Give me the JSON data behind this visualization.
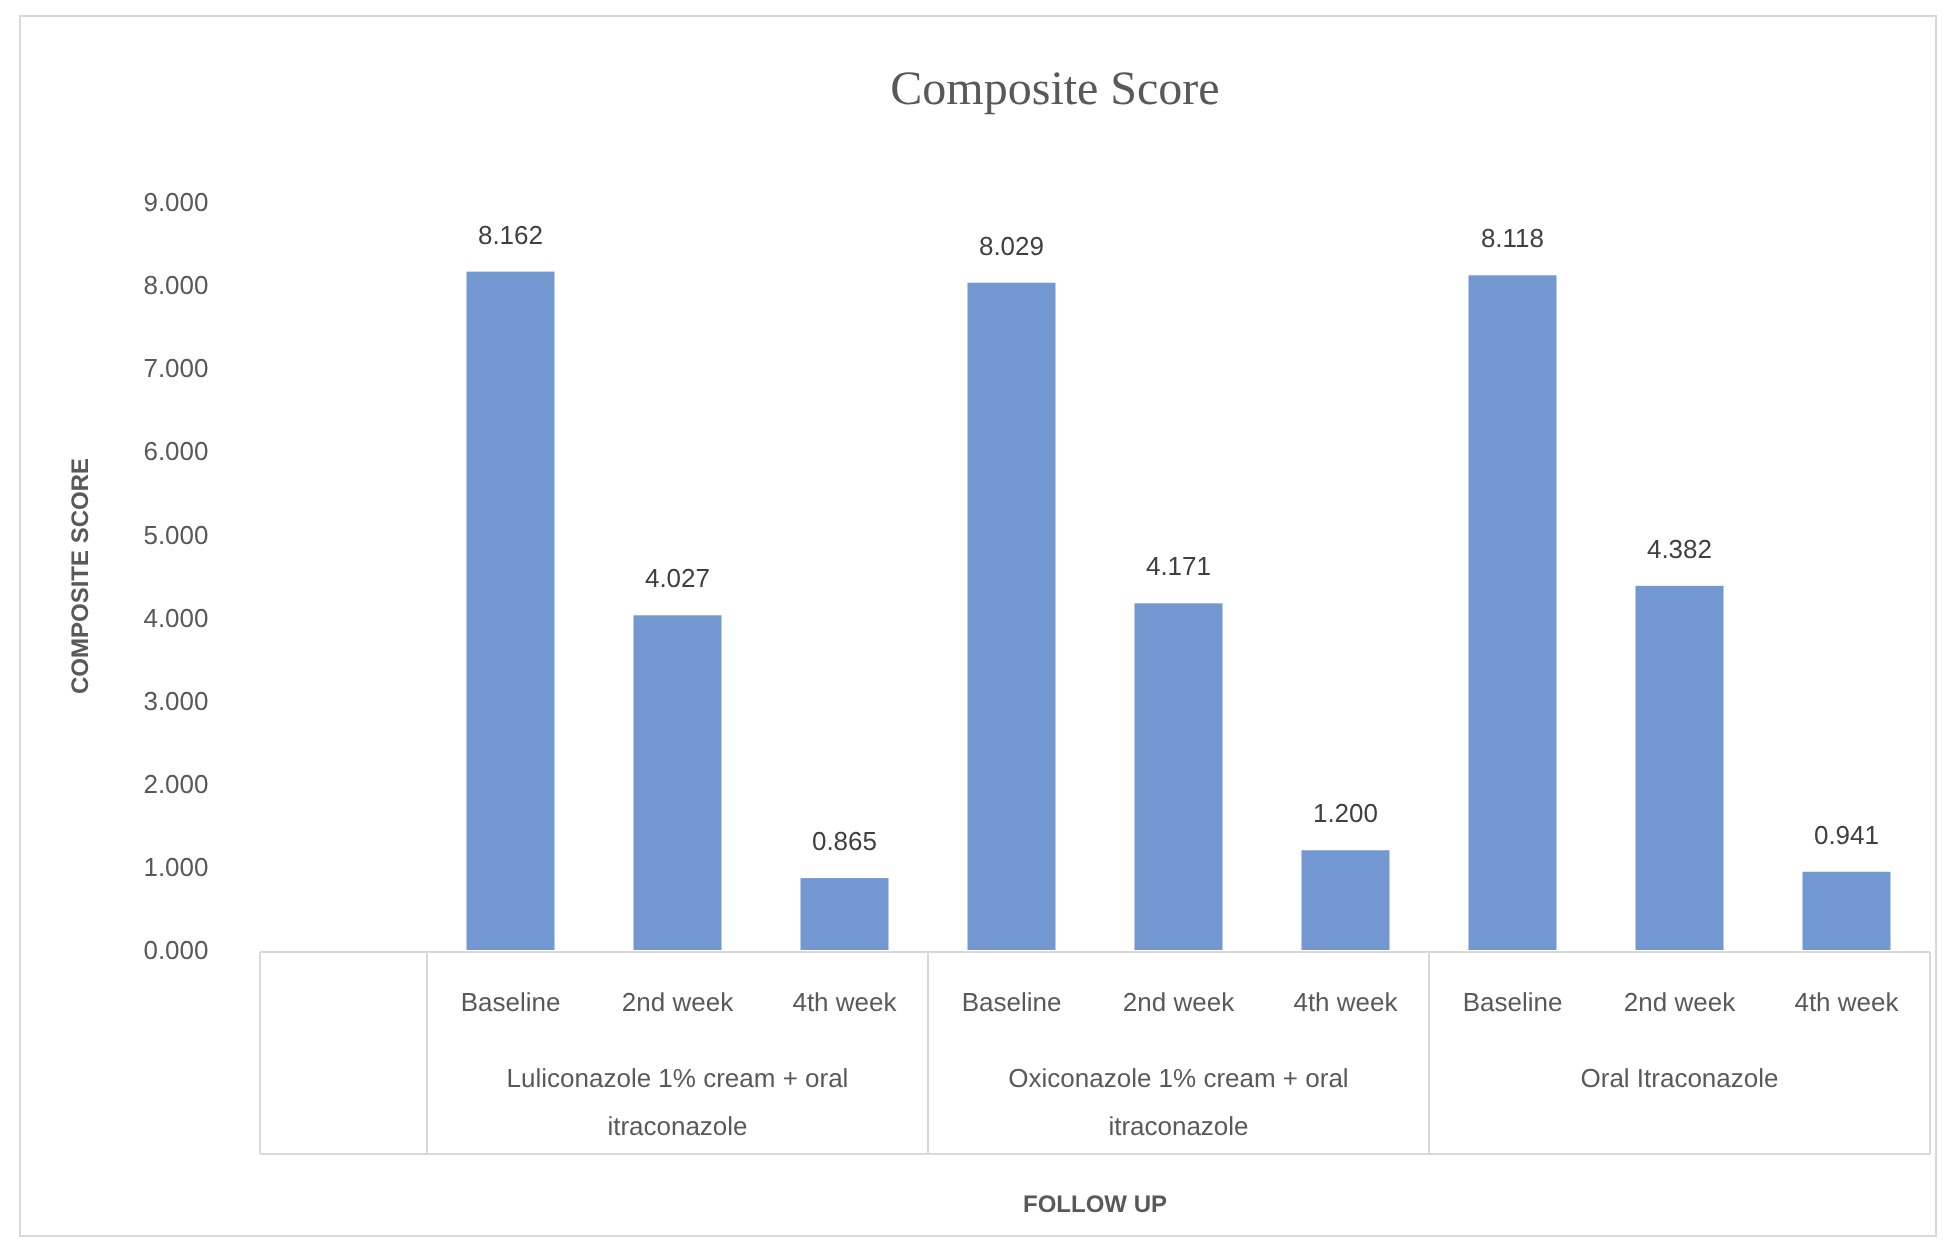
{
  "chart_data": {
    "type": "bar",
    "title": "Composite Score",
    "ylabel": "COMPOSITE SCORE",
    "categories": [
      null,
      "Baseline",
      "2nd week",
      "4th week",
      "Baseline",
      "2nd week",
      "4th week",
      "Baseline",
      "2nd week",
      "4th week"
    ],
    "values": [
      null,
      8.162,
      4.027,
      0.865,
      8.029,
      4.171,
      1.2,
      8.118,
      4.382,
      0.941
    ],
    "value_labels": [
      null,
      "8.162",
      "4.027",
      "0.865",
      "8.029",
      "4.171",
      "1.200",
      "8.118",
      "4.382",
      "0.941"
    ],
    "color": "#7397d1",
    "ylim": [
      0,
      9
    ],
    "yticks": [
      {
        "value": 0,
        "label": "0.000"
      },
      {
        "value": 1,
        "label": "1.000"
      },
      {
        "value": 2,
        "label": "2.000"
      },
      {
        "value": 3,
        "label": "3.000"
      },
      {
        "value": 4,
        "label": "4.000"
      },
      {
        "value": 5,
        "label": "5.000"
      },
      {
        "value": 6,
        "label": "6.000"
      },
      {
        "value": 7,
        "label": "7.000"
      },
      {
        "value": 8,
        "label": "8.000"
      },
      {
        "value": 9,
        "label": "9.000"
      }
    ],
    "annotations": [
      "Luliconazole 1% cream + oral itraconazole",
      "Oxiconazole 1% cream + oral itraconazole",
      "Oral Itraconazole",
      "FOLLOW UP"
    ]
  }
}
